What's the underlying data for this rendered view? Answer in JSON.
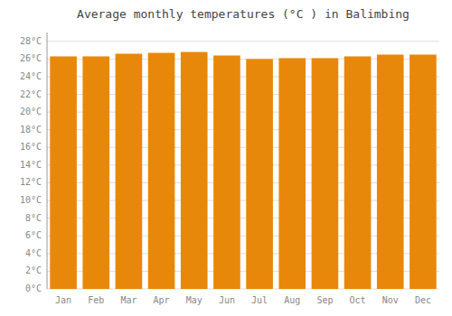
{
  "chart_data": {
    "type": "bar",
    "title": "Average monthly temperatures (°C ) in Balimbing",
    "categories": [
      "Jan",
      "Feb",
      "Mar",
      "Apr",
      "May",
      "Jun",
      "Jul",
      "Aug",
      "Sep",
      "Oct",
      "Nov",
      "Dec"
    ],
    "values": [
      26.3,
      26.3,
      26.6,
      26.7,
      26.8,
      26.4,
      26.0,
      26.1,
      26.1,
      26.3,
      26.5,
      26.5
    ],
    "color": "#E8880A",
    "ylim": [
      0,
      29
    ],
    "yticks": [
      {
        "value": 0,
        "label": "0°C"
      },
      {
        "value": 2,
        "label": "2°C"
      },
      {
        "value": 4,
        "label": "4°C"
      },
      {
        "value": 6,
        "label": "6°C"
      },
      {
        "value": 8,
        "label": "8°C"
      },
      {
        "value": 10,
        "label": "10°C"
      },
      {
        "value": 12,
        "label": "12°C"
      },
      {
        "value": 14,
        "label": "14°C"
      },
      {
        "value": 16,
        "label": "16°C"
      },
      {
        "value": 18,
        "label": "18°C"
      },
      {
        "value": 20,
        "label": "20°C"
      },
      {
        "value": 22,
        "label": "22°C"
      },
      {
        "value": 24,
        "label": "24°C"
      },
      {
        "value": 26,
        "label": "26°C"
      },
      {
        "value": 28,
        "label": "28°C"
      }
    ],
    "grid": true
  }
}
